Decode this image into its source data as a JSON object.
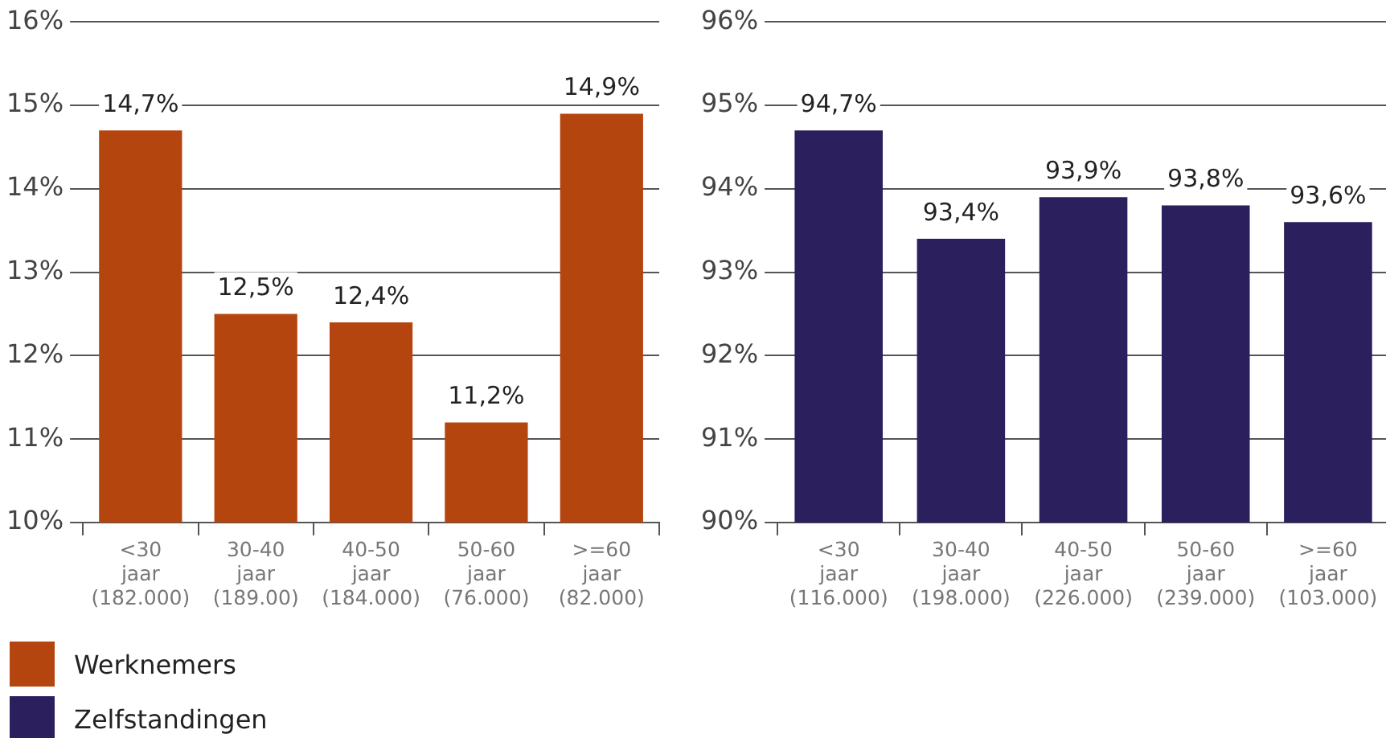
{
  "chart_data": [
    {
      "type": "bar",
      "categories": [
        "<30\njaar\n(182.000)",
        "30-40\njaar\n(189.00)",
        "40-50\njaar\n(184.000)",
        "50-60\njaar\n(76.000)",
        ">=60\njaar\n(82.000)"
      ],
      "series": [
        {
          "name": "Werknemers",
          "color": "#b5450f",
          "values": [
            14.7,
            12.5,
            12.4,
            11.2,
            14.9
          ],
          "value_labels": [
            "14,7%",
            "12,5%",
            "12,4%",
            "11,2%",
            "14,9%"
          ]
        }
      ],
      "ylim": [
        10,
        16
      ],
      "yticks": [
        {
          "value": 10,
          "label": "10%"
        },
        {
          "value": 11,
          "label": "11%"
        },
        {
          "value": 12,
          "label": "12%"
        },
        {
          "value": 13,
          "label": "13%"
        },
        {
          "value": 14,
          "label": "14%"
        },
        {
          "value": 15,
          "label": "15%"
        },
        {
          "value": 16,
          "label": "16%"
        }
      ],
      "grid": "y",
      "legend": "bottom"
    },
    {
      "type": "bar",
      "categories": [
        "<30\njaar\n(116.000)",
        "30-40\njaar\n(198.000)",
        "40-50\njaar\n(226.000)",
        "50-60\njaar\n(239.000)",
        ">=60\njaar\n(103.000)"
      ],
      "series": [
        {
          "name": "Zelfstandingen",
          "color": "#2b1f5e",
          "values": [
            94.7,
            93.4,
            93.9,
            93.8,
            93.6
          ],
          "value_labels": [
            "94,7%",
            "93,4%",
            "93,9%",
            "93,8%",
            "93,6%"
          ]
        }
      ],
      "ylim": [
        90,
        96
      ],
      "yticks": [
        {
          "value": 90,
          "label": "90%"
        },
        {
          "value": 91,
          "label": "91%"
        },
        {
          "value": 92,
          "label": "92%"
        },
        {
          "value": 93,
          "label": "93%"
        },
        {
          "value": 94,
          "label": "94%"
        },
        {
          "value": 95,
          "label": "95%"
        },
        {
          "value": 96,
          "label": "96%"
        }
      ],
      "grid": "y",
      "legend": "bottom"
    }
  ]
}
